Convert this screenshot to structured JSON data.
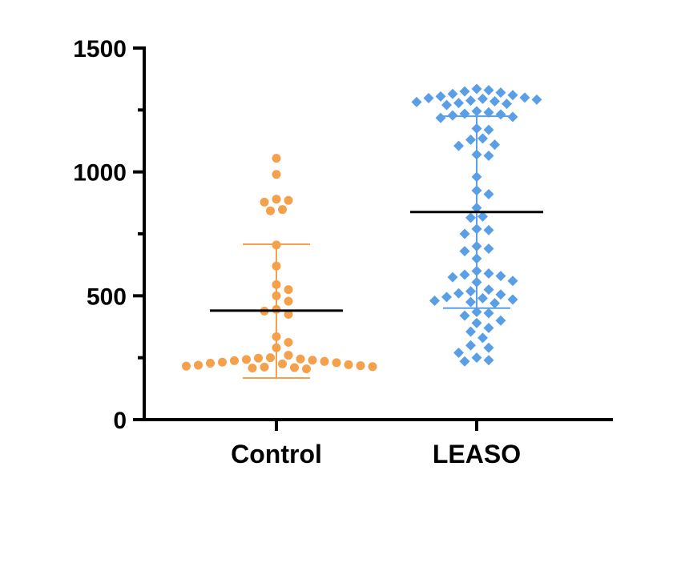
{
  "chart_data": {
    "type": "scatter",
    "title": "",
    "xlabel": "",
    "ylabel": "",
    "ylim": [
      0,
      1500
    ],
    "yticks": [
      0,
      500,
      1000,
      1500
    ],
    "y_minor_step": 250,
    "categories": [
      "Control",
      "LEASO"
    ],
    "series": [
      {
        "name": "Control",
        "color": "#f5a04a",
        "marker": "circle",
        "mean": 440,
        "sd_upper": 708,
        "sd_lower": 168,
        "values": [
          1055,
          990,
          890,
          885,
          878,
          848,
          843,
          705,
          620,
          545,
          525,
          500,
          478,
          445,
          438,
          425,
          335,
          312,
          290,
          260,
          250,
          248,
          245,
          243,
          240,
          238,
          235,
          232,
          230,
          228,
          225,
          222,
          220,
          218,
          216,
          214,
          212,
          210,
          208,
          205
        ]
      },
      {
        "name": "LEASO",
        "color": "#5a9fe6",
        "marker": "diamond",
        "mean": 838,
        "sd_upper": 1225,
        "sd_lower": 450,
        "values": [
          1335,
          1330,
          1325,
          1320,
          1315,
          1310,
          1305,
          1300,
          1298,
          1295,
          1292,
          1288,
          1285,
          1282,
          1278,
          1275,
          1270,
          1245,
          1240,
          1235,
          1232,
          1228,
          1222,
          1218,
          1175,
          1170,
          1135,
          1130,
          1110,
          1105,
          1070,
          1065,
          980,
          925,
          910,
          855,
          820,
          815,
          770,
          765,
          750,
          700,
          690,
          680,
          650,
          600,
          590,
          585,
          580,
          575,
          560,
          555,
          525,
          518,
          510,
          505,
          495,
          490,
          485,
          480,
          475,
          470,
          435,
          430,
          420,
          400,
          390,
          370,
          355,
          330,
          300,
          290,
          270,
          250,
          240,
          235
        ]
      }
    ]
  }
}
